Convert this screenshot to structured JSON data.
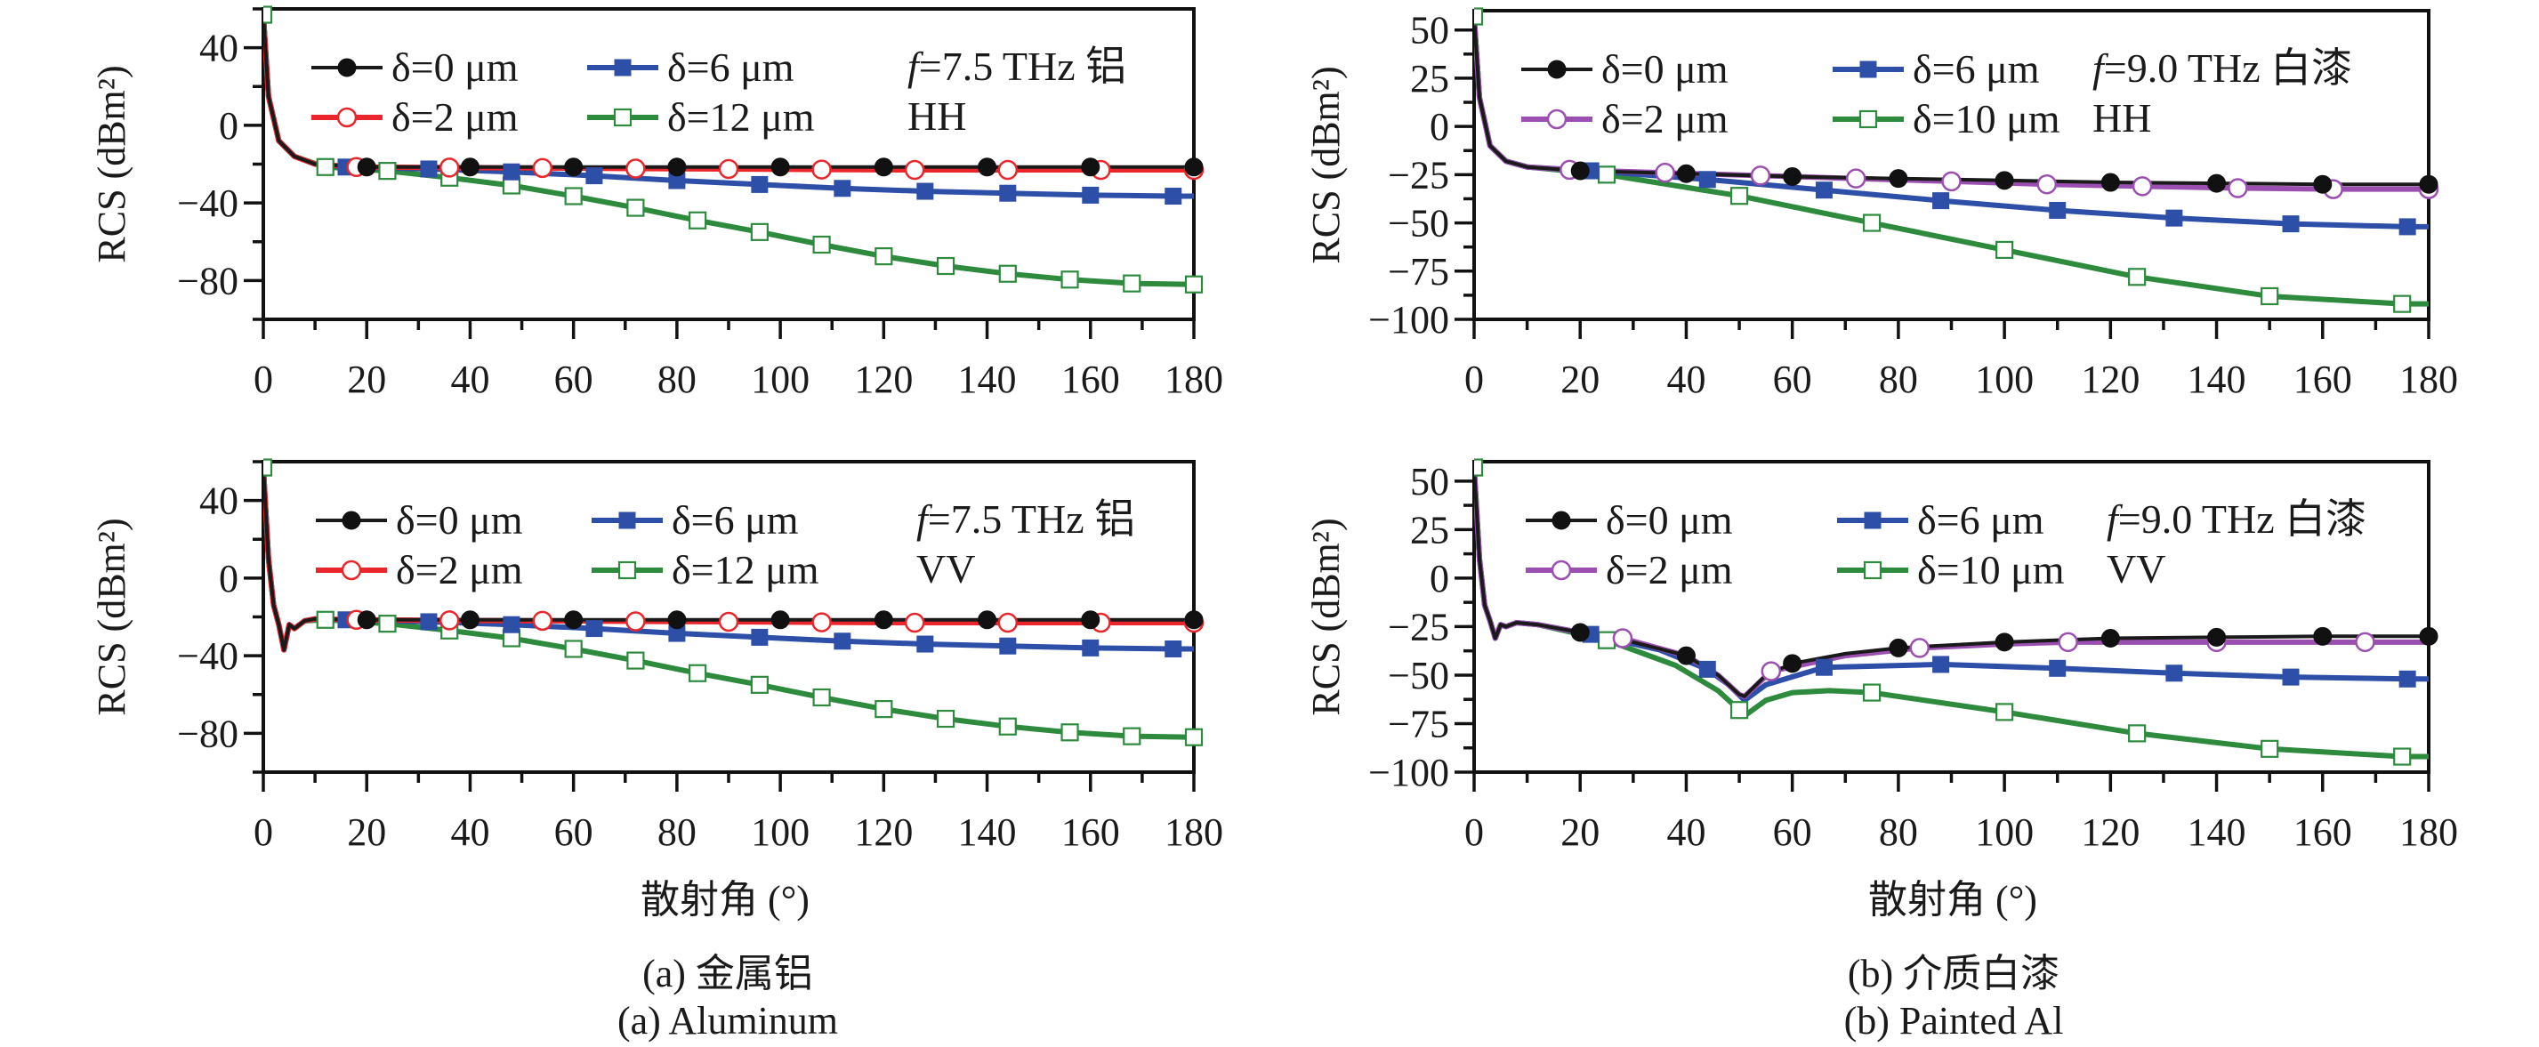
{
  "chart_data": [
    {
      "id": "a-hh",
      "type": "line",
      "panel": "(a) top",
      "annotation": {
        "line1": "f=7.5 THz 铝",
        "line1_italic": "f",
        "line1_rest": "=7.5 THz 铝",
        "line2": "HH"
      },
      "ylabel": "RCS (dBm²)",
      "xlabel": "",
      "xlim": [
        0,
        180
      ],
      "ylim": [
        -100,
        60
      ],
      "xticks": [
        0,
        20,
        40,
        60,
        80,
        100,
        120,
        140,
        160,
        180
      ],
      "yticks": [
        40,
        0,
        -40,
        -80
      ],
      "legend": "top-left, two columns",
      "series": [
        {
          "name": "δ=0 μm",
          "color": "#1a1a1a",
          "marker": "filled-circle",
          "x": [
            0,
            1,
            3,
            6,
            10,
            20,
            40,
            60,
            80,
            100,
            120,
            140,
            160,
            180
          ],
          "y": [
            57,
            15,
            -8,
            -16,
            -20,
            -21.5,
            -21.5,
            -21.5,
            -21.5,
            -21.5,
            -21.5,
            -21.5,
            -21.5,
            -21.5
          ],
          "markers_x": [
            20,
            40,
            60,
            80,
            100,
            120,
            140,
            160,
            180
          ]
        },
        {
          "name": "δ=2 μm",
          "color": "#e8262b",
          "marker": "open-circle",
          "x": [
            0,
            1,
            3,
            6,
            10,
            18,
            36,
            54,
            72,
            90,
            108,
            126,
            144,
            162,
            180
          ],
          "y": [
            57,
            15,
            -8,
            -16,
            -20,
            -21.5,
            -21.8,
            -22,
            -22.3,
            -22.5,
            -22.8,
            -23,
            -23,
            -23,
            -23
          ],
          "markers_x": [
            18,
            36,
            54,
            72,
            90,
            108,
            126,
            144,
            162,
            180
          ]
        },
        {
          "name": "δ=6 μm",
          "color": "#2e4fa8",
          "marker": "filled-square",
          "x": [
            0,
            1,
            3,
            6,
            10,
            16,
            32,
            48,
            64,
            80,
            96,
            112,
            128,
            144,
            160,
            176,
            180
          ],
          "y": [
            57,
            15,
            -8,
            -16,
            -20,
            -21.5,
            -22.5,
            -24,
            -26,
            -28.5,
            -30.5,
            -32.5,
            -34,
            -35,
            -36,
            -36.5,
            -36.5
          ],
          "markers_x": [
            16,
            32,
            48,
            64,
            80,
            96,
            112,
            128,
            144,
            160,
            176
          ]
        },
        {
          "name": "δ=12 μm",
          "color": "#2e8b3e",
          "marker": "open-square",
          "x": [
            0,
            1,
            3,
            6,
            12,
            24,
            36,
            48,
            60,
            72,
            84,
            96,
            108,
            120,
            132,
            144,
            156,
            168,
            180
          ],
          "y": [
            57,
            15,
            -8,
            -16,
            -21.5,
            -23.5,
            -27,
            -31,
            -36.5,
            -42.5,
            -49,
            -55,
            -61.5,
            -67.5,
            -72.5,
            -76.5,
            -79.5,
            -81.5,
            -82
          ],
          "markers_x": [
            0,
            12,
            24,
            36,
            48,
            60,
            72,
            84,
            96,
            108,
            120,
            132,
            144,
            156,
            168,
            180
          ]
        }
      ]
    },
    {
      "id": "b-hh",
      "type": "line",
      "panel": "(b) top",
      "annotation": {
        "line1": "f=9.0 THz 白漆",
        "line1_italic": "f",
        "line1_rest": "=9.0 THz 白漆",
        "line2": "HH"
      },
      "ylabel": "RCS (dBm²)",
      "xlabel": "",
      "xlim": [
        0,
        180
      ],
      "ylim": [
        -100,
        60
      ],
      "xticks": [
        0,
        20,
        40,
        60,
        80,
        100,
        120,
        140,
        160,
        180
      ],
      "yticks": [
        50,
        25,
        0,
        -25,
        -50,
        -75,
        -100
      ],
      "legend": "top-left, two columns",
      "series": [
        {
          "name": "δ=0 μm",
          "color": "#1a1a1a",
          "marker": "filled-circle",
          "x": [
            0,
            1,
            3,
            6,
            10,
            20,
            40,
            60,
            80,
            100,
            120,
            140,
            160,
            180
          ],
          "y": [
            57,
            15,
            -10,
            -18,
            -21,
            -23,
            -24.5,
            -26,
            -27,
            -28,
            -29,
            -29.5,
            -30,
            -30
          ],
          "markers_x": [
            20,
            40,
            60,
            80,
            100,
            120,
            140,
            160,
            180
          ]
        },
        {
          "name": "δ=2 μm",
          "color": "#9b4fb0",
          "marker": "open-circle",
          "x": [
            0,
            1,
            3,
            6,
            10,
            18,
            36,
            54,
            72,
            90,
            108,
            126,
            144,
            162,
            180
          ],
          "y": [
            57,
            15,
            -10,
            -18,
            -21,
            -22.5,
            -24,
            -25.5,
            -27,
            -28.5,
            -30,
            -31,
            -32,
            -32.5,
            -32.5
          ],
          "markers_x": [
            18,
            36,
            54,
            72,
            90,
            108,
            126,
            144,
            162,
            180
          ]
        },
        {
          "name": "δ=6 μm",
          "color": "#2e4fa8",
          "marker": "filled-square",
          "x": [
            0,
            1,
            3,
            6,
            10,
            22,
            44,
            66,
            88,
            110,
            132,
            154,
            176,
            180
          ],
          "y": [
            57,
            15,
            -10,
            -18,
            -21,
            -23,
            -27.5,
            -33,
            -38.5,
            -43.5,
            -47.5,
            -50.5,
            -52,
            -52
          ],
          "markers_x": [
            22,
            44,
            66,
            88,
            110,
            132,
            154,
            176
          ]
        },
        {
          "name": "δ=10 μm",
          "color": "#2e8b3e",
          "marker": "open-square",
          "x": [
            0,
            1,
            3,
            6,
            10,
            25,
            50,
            75,
            100,
            125,
            150,
            175,
            180
          ],
          "y": [
            57,
            15,
            -10,
            -18,
            -21,
            -25,
            -36,
            -50,
            -64,
            -78,
            -88,
            -92,
            -92
          ],
          "markers_x": [
            0,
            25,
            50,
            75,
            100,
            125,
            150,
            175
          ]
        }
      ]
    },
    {
      "id": "a-vv",
      "type": "line",
      "panel": "(a) bottom",
      "annotation": {
        "line1": "f=7.5 THz 铝",
        "line1_italic": "f",
        "line1_rest": "=7.5 THz 铝",
        "line2": "VV"
      },
      "ylabel": "RCS (dBm²)",
      "xlabel": "散射角 (°)",
      "xlim": [
        0,
        180
      ],
      "ylim": [
        -100,
        60
      ],
      "xticks": [
        0,
        20,
        40,
        60,
        80,
        100,
        120,
        140,
        160,
        180
      ],
      "yticks": [
        40,
        0,
        -40,
        -80
      ],
      "legend": "top-left, two columns",
      "series": [
        {
          "name": "δ=0 μm",
          "color": "#1a1a1a",
          "marker": "filled-circle",
          "x": [
            0,
            1,
            2,
            3,
            4,
            5,
            6,
            8,
            10,
            20,
            40,
            60,
            80,
            100,
            120,
            140,
            160,
            180
          ],
          "y": [
            57,
            10,
            -14,
            -24,
            -37,
            -24,
            -26,
            -22,
            -21,
            -21.5,
            -21.5,
            -21.5,
            -21.5,
            -21.5,
            -21.5,
            -21.5,
            -21.5,
            -21.5
          ],
          "markers_x": [
            20,
            40,
            60,
            80,
            100,
            120,
            140,
            160,
            180
          ]
        },
        {
          "name": "δ=2 μm",
          "color": "#e8262b",
          "marker": "open-circle",
          "x": [
            0,
            1,
            2,
            3,
            4,
            5,
            6,
            8,
            10,
            18,
            36,
            54,
            72,
            90,
            108,
            126,
            144,
            162,
            180
          ],
          "y": [
            57,
            10,
            -14,
            -24,
            -37,
            -24,
            -26,
            -22,
            -21,
            -21.5,
            -21.8,
            -22,
            -22.3,
            -22.5,
            -22.8,
            -23,
            -23,
            -23,
            -23
          ],
          "markers_x": [
            18,
            36,
            54,
            72,
            90,
            108,
            126,
            144,
            162,
            180
          ]
        },
        {
          "name": "δ=6 μm",
          "color": "#2e4fa8",
          "marker": "filled-square",
          "x": [
            0,
            1,
            2,
            3,
            4,
            5,
            6,
            8,
            10,
            16,
            32,
            48,
            64,
            80,
            96,
            112,
            128,
            144,
            160,
            176,
            180
          ],
          "y": [
            57,
            10,
            -14,
            -24,
            -37,
            -24,
            -26,
            -22,
            -21,
            -21.5,
            -22.5,
            -24,
            -26,
            -28.5,
            -30.5,
            -32.5,
            -34,
            -35,
            -36,
            -36.5,
            -36.5
          ],
          "markers_x": [
            16,
            32,
            48,
            64,
            80,
            96,
            112,
            128,
            144,
            160,
            176
          ]
        },
        {
          "name": "δ=12 μm",
          "color": "#2e8b3e",
          "marker": "open-square",
          "x": [
            0,
            1,
            2,
            3,
            4,
            5,
            6,
            8,
            12,
            24,
            36,
            48,
            60,
            72,
            84,
            96,
            108,
            120,
            132,
            144,
            156,
            168,
            180
          ],
          "y": [
            57,
            10,
            -14,
            -24,
            -37,
            -24,
            -26,
            -22,
            -21.5,
            -23.5,
            -27,
            -31,
            -36.5,
            -42.5,
            -49,
            -55,
            -61.5,
            -67.5,
            -72.5,
            -76.5,
            -79.5,
            -81.5,
            -82
          ],
          "markers_x": [
            0,
            12,
            24,
            36,
            48,
            60,
            72,
            84,
            96,
            108,
            120,
            132,
            144,
            156,
            168,
            180
          ]
        }
      ]
    },
    {
      "id": "b-vv",
      "type": "line",
      "panel": "(b) bottom",
      "annotation": {
        "line1": "f=9.0 THz 白漆",
        "line1_italic": "f",
        "line1_rest": "=9.0 THz 白漆",
        "line2": "VV"
      },
      "ylabel": "RCS (dBm²)",
      "xlabel": "散射角 (°)",
      "xlim": [
        0,
        180
      ],
      "ylim": [
        -100,
        60
      ],
      "xticks": [
        0,
        20,
        40,
        60,
        80,
        100,
        120,
        140,
        160,
        180
      ],
      "yticks": [
        50,
        25,
        0,
        -25,
        -50,
        -75,
        -100
      ],
      "legend": "top-left, two columns",
      "series": [
        {
          "name": "δ=0 μm",
          "color": "#1a1a1a",
          "marker": "filled-circle",
          "x": [
            0,
            1,
            2,
            3,
            4,
            5,
            6,
            8,
            12,
            20,
            30,
            40,
            46,
            50,
            51,
            55,
            60,
            70,
            80,
            100,
            120,
            140,
            160,
            180
          ],
          "y": [
            57,
            10,
            -14,
            -22,
            -31,
            -24,
            -25,
            -23,
            -24,
            -28,
            -33,
            -40,
            -50,
            -60,
            -61,
            -50,
            -44,
            -39,
            -36,
            -33,
            -31,
            -30.5,
            -30,
            -30
          ],
          "markers_x": [
            20,
            40,
            60,
            80,
            100,
            120,
            140,
            160,
            180
          ]
        },
        {
          "name": "δ=2 μm",
          "color": "#9b4fb0",
          "marker": "open-circle",
          "x": [
            0,
            1,
            2,
            3,
            4,
            5,
            6,
            8,
            12,
            20,
            28,
            40,
            46,
            50,
            51,
            56,
            70,
            84,
            100,
            112,
            140,
            168,
            180
          ],
          "y": [
            57,
            10,
            -14,
            -22,
            -31,
            -24,
            -25,
            -23,
            -24,
            -28,
            -31,
            -40,
            -50,
            -60,
            -61,
            -48,
            -40,
            -36,
            -34,
            -33,
            -33,
            -33,
            -33
          ],
          "markers_x": [
            28,
            56,
            84,
            112,
            140,
            168
          ]
        },
        {
          "name": "δ=6 μm",
          "color": "#2e4fa8",
          "marker": "filled-square",
          "x": [
            0,
            1,
            2,
            3,
            4,
            5,
            6,
            8,
            12,
            22,
            35,
            44,
            48,
            51,
            55,
            66,
            88,
            110,
            132,
            154,
            176,
            180
          ],
          "y": [
            57,
            10,
            -14,
            -22,
            -31,
            -24,
            -25,
            -23,
            -24,
            -29,
            -37,
            -47,
            -55,
            -63,
            -55,
            -46,
            -44.5,
            -46.5,
            -49,
            -51,
            -52,
            -52
          ],
          "markers_x": [
            22,
            44,
            66,
            88,
            110,
            132,
            154,
            176
          ]
        },
        {
          "name": "δ=10 μm",
          "color": "#2e8b3e",
          "marker": "open-square",
          "x": [
            0,
            1,
            2,
            3,
            4,
            5,
            6,
            8,
            12,
            25,
            38,
            46,
            50,
            51,
            55,
            60,
            67,
            75,
            100,
            125,
            150,
            175,
            180
          ],
          "y": [
            57,
            10,
            -14,
            -22,
            -31,
            -24,
            -25,
            -23,
            -24,
            -32,
            -45,
            -58,
            -68,
            -71,
            -63,
            -59,
            -58,
            -59,
            -69,
            -80,
            -88,
            -92,
            -92
          ],
          "markers_x": [
            0,
            25,
            50,
            75,
            100,
            125,
            150,
            175
          ]
        }
      ]
    }
  ],
  "axis_titles": {
    "x_left": "散射角 (°)",
    "x_right": "散射角 (°)"
  },
  "captions": {
    "a_cn": "(a) 金属铝",
    "a_en": "(a) Aluminum",
    "b_cn": "(b) 介质白漆",
    "b_en": "(b) Painted Al"
  }
}
